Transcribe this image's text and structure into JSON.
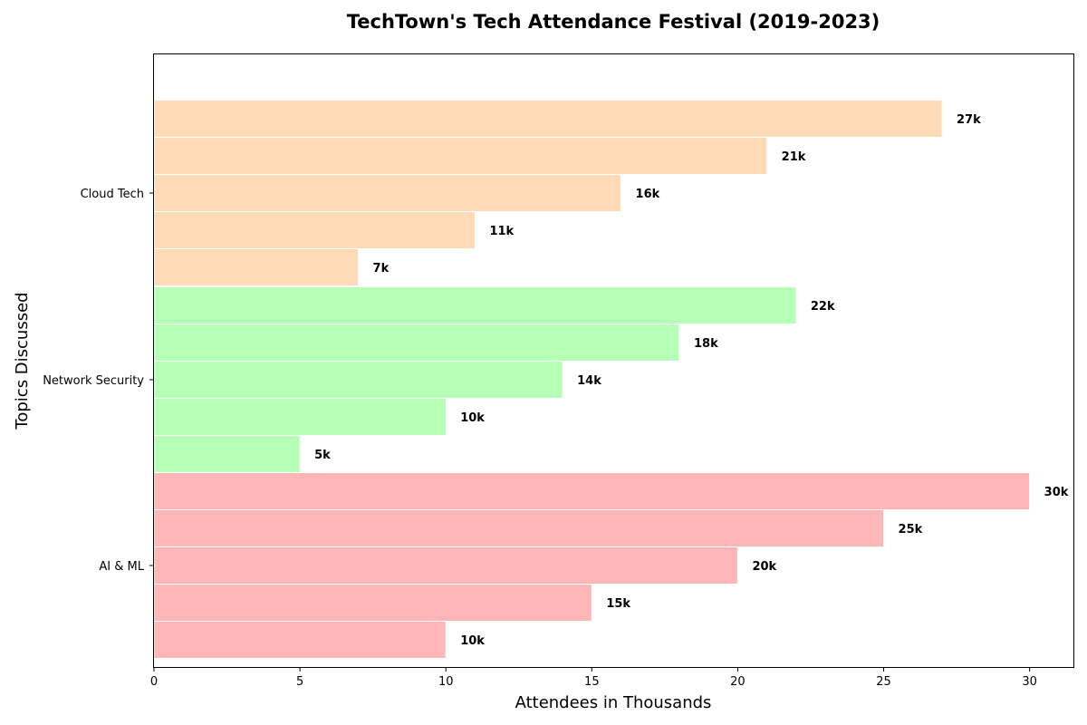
{
  "chart_data": {
    "type": "bar",
    "orientation": "horizontal",
    "title": "TechTown's Tech Attendance Festival (2019-2023)",
    "xlabel": "Attendees in Thousands",
    "ylabel": "Topics Discussed",
    "xlim": [
      0,
      31.5
    ],
    "x_ticks": [
      0,
      5,
      10,
      15,
      20,
      25,
      30
    ],
    "categories": [
      "AI & ML",
      "Network Security",
      "Cloud Tech"
    ],
    "values": [
      [
        10,
        15,
        20,
        25,
        30
      ],
      [
        5,
        10,
        14,
        18,
        22
      ],
      [
        7,
        11,
        16,
        21,
        27
      ]
    ],
    "data_labels": [
      [
        "10k",
        "15k",
        "20k",
        "25k",
        "30k"
      ],
      [
        "5k",
        "10k",
        "14k",
        "18k",
        "22k"
      ],
      [
        "7k",
        "11k",
        "16k",
        "21k",
        "27k"
      ]
    ],
    "colors": [
      "#ffb6b6",
      "#b6ffb6",
      "#ffdab6"
    ],
    "bar_edge_color": "#ffffff",
    "grid": false,
    "legend": "none"
  }
}
